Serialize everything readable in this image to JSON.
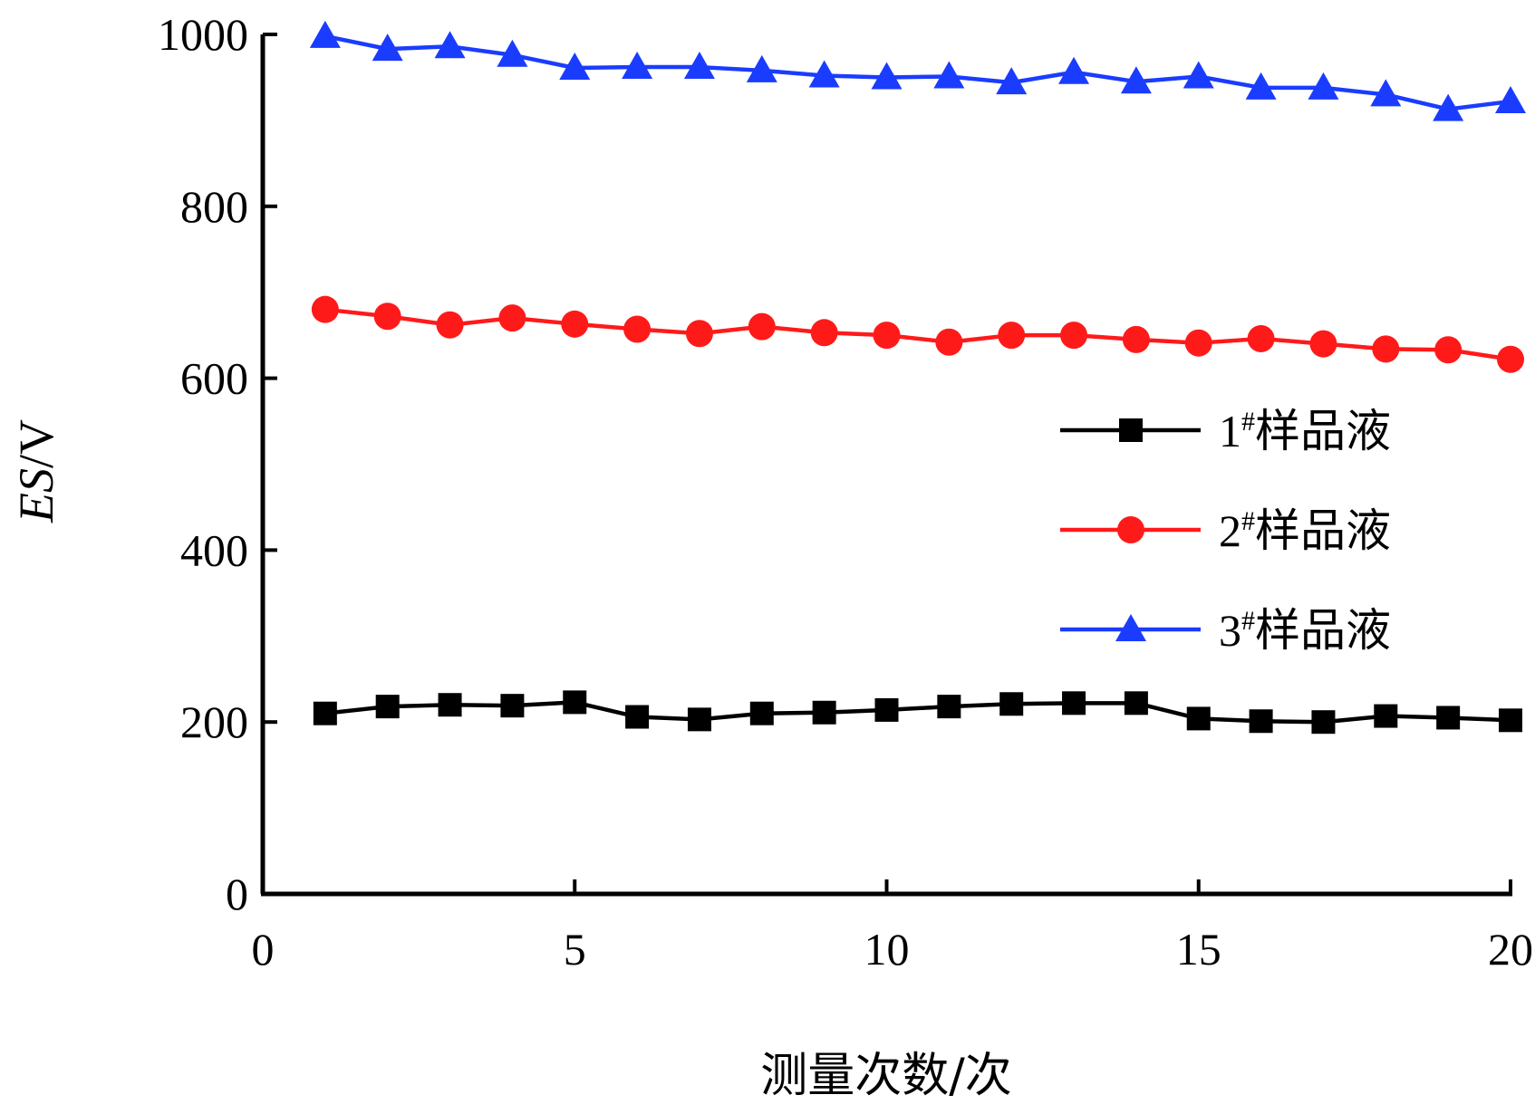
{
  "chart_data": {
    "type": "line",
    "title": "",
    "xlabel": "测量次数/次",
    "ylabel_italic": "ES",
    "ylabel_unit": "/V",
    "xlim": [
      0,
      20
    ],
    "ylim": [
      0,
      1000
    ],
    "xticks": [
      0,
      5,
      10,
      15,
      20
    ],
    "yticks": [
      0,
      200,
      400,
      600,
      800,
      1000
    ],
    "grid": false,
    "legend_position": "right",
    "x": [
      1,
      2,
      3,
      4,
      5,
      6,
      7,
      8,
      9,
      10,
      11,
      12,
      13,
      14,
      15,
      16,
      17,
      18,
      19,
      20
    ],
    "series": [
      {
        "name": "1#样品液",
        "name_number": "1",
        "name_sup": "#",
        "name_text": "样品液",
        "color": "#000000",
        "marker": "square",
        "values": [
          210,
          218,
          220,
          219,
          223,
          206,
          203,
          210,
          211,
          214,
          218,
          221,
          222,
          222,
          204,
          201,
          200,
          207,
          205,
          202
        ]
      },
      {
        "name": "2#样品液",
        "name_number": "2",
        "name_sup": "#",
        "name_text": "样品液",
        "color": "#ff1a1a",
        "marker": "circle",
        "values": [
          680,
          672,
          662,
          670,
          663,
          657,
          652,
          660,
          653,
          650,
          642,
          650,
          650,
          645,
          641,
          646,
          640,
          634,
          633,
          622
        ]
      },
      {
        "name": "3#样品液",
        "name_number": "3",
        "name_sup": "#",
        "name_text": "样品液",
        "color": "#1a3cff",
        "marker": "triangle",
        "values": [
          998,
          983,
          986,
          976,
          961,
          962,
          962,
          958,
          952,
          950,
          951,
          944,
          956,
          945,
          951,
          938,
          938,
          930,
          913,
          922
        ]
      }
    ]
  }
}
